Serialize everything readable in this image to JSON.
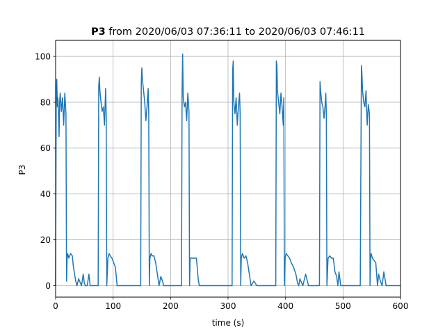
{
  "chart_data": {
    "type": "line",
    "title": {
      "bold": "P3",
      "rest": " from 2020/06/03 07:36:11 to 2020/06/03 07:46:11"
    },
    "xlabel": "time (s)",
    "ylabel": "P3",
    "xlim": [
      0,
      600
    ],
    "ylim": [
      -5,
      107
    ],
    "xticks": [
      0,
      100,
      200,
      300,
      400,
      500,
      600
    ],
    "yticks": [
      0,
      20,
      40,
      60,
      80,
      100
    ],
    "grid": true,
    "color": "#1f77b4",
    "series": [
      {
        "x": [
          0,
          1,
          2,
          3,
          4,
          5,
          6,
          7,
          8,
          10,
          12,
          14,
          16,
          18,
          19,
          20,
          21,
          23,
          26,
          29,
          31,
          33,
          35,
          37,
          40,
          45,
          48,
          50,
          52,
          55,
          58,
          60,
          65,
          70,
          74,
          75,
          76,
          77,
          79,
          81,
          83,
          85,
          87,
          88,
          89,
          91,
          93,
          95,
          98,
          101,
          104,
          107,
          110,
          115,
          120,
          125,
          130,
          135,
          140,
          145,
          148,
          149,
          150,
          151,
          153,
          155,
          157,
          159,
          161,
          162,
          163,
          164,
          166,
          168,
          171,
          174,
          177,
          180,
          183,
          186,
          188,
          190,
          195,
          200,
          205,
          210,
          215,
          219,
          220,
          221,
          222,
          224,
          226,
          228,
          230,
          232,
          233,
          234,
          236,
          240,
          245,
          248,
          250,
          255,
          260,
          270,
          280,
          290,
          300,
          305,
          307,
          308,
          309,
          310,
          312,
          314,
          316,
          318,
          320,
          321,
          322,
          323,
          325,
          328,
          331,
          334,
          337,
          340,
          345,
          350,
          355,
          360,
          365,
          370,
          375,
          380,
          383,
          384,
          385,
          386,
          388,
          390,
          392,
          394,
          396,
          397,
          398,
          399,
          401,
          404,
          407,
          410,
          414,
          418,
          421,
          423,
          425,
          430,
          435,
          440,
          445,
          450,
          455,
          458,
          459,
          460,
          461,
          463,
          465,
          467,
          469,
          470,
          471,
          472,
          474,
          477,
          480,
          483,
          486,
          489,
          491,
          493,
          496,
          500,
          505,
          510,
          515,
          520,
          525,
          530,
          532,
          533,
          534,
          536,
          538,
          540,
          542,
          544,
          546,
          547,
          548,
          549,
          551,
          554,
          557,
          560,
          562,
          565,
          568,
          571,
          575,
          580,
          585,
          590,
          595,
          600
        ],
        "y": [
          0,
          86,
          90,
          78,
          82,
          75,
          65,
          80,
          84,
          76,
          82,
          70,
          84,
          75,
          2,
          12,
          14,
          12,
          14,
          13,
          8,
          5,
          2,
          0,
          3,
          0,
          5,
          1,
          0,
          0,
          5,
          0,
          0,
          0,
          0,
          87,
          91,
          85,
          80,
          76,
          78,
          70,
          86,
          75,
          0,
          12,
          14,
          13,
          12,
          10,
          8,
          0,
          0,
          0,
          0,
          0,
          0,
          0,
          0,
          0,
          0,
          88,
          95,
          90,
          85,
          80,
          72,
          78,
          86,
          75,
          0,
          12,
          14,
          13,
          13,
          10,
          5,
          0,
          4,
          2,
          0,
          0,
          0,
          0,
          0,
          0,
          0,
          0,
          85,
          101,
          82,
          78,
          80,
          72,
          84,
          76,
          0,
          12,
          12,
          12,
          12,
          3,
          0,
          0,
          0,
          0,
          0,
          0,
          0,
          0,
          0,
          94,
          98,
          80,
          75,
          82,
          70,
          78,
          84,
          75,
          0,
          12,
          14,
          12,
          13,
          10,
          5,
          0,
          2,
          0,
          0,
          0,
          0,
          0,
          0,
          0,
          0,
          98,
          96,
          85,
          80,
          75,
          84,
          78,
          70,
          82,
          0,
          12,
          14,
          13,
          12,
          10,
          8,
          5,
          1,
          0,
          3,
          0,
          5,
          0,
          0,
          0,
          0,
          0,
          0,
          89,
          85,
          80,
          78,
          73,
          79,
          84,
          75,
          0,
          12,
          13,
          12,
          12,
          6,
          4,
          0,
          6,
          0,
          0,
          0,
          0,
          0,
          0,
          0,
          0,
          96,
          92,
          85,
          80,
          78,
          85,
          70,
          79,
          75,
          0,
          12,
          14,
          12,
          11,
          10,
          0,
          5,
          2,
          0,
          6,
          0,
          0,
          0,
          0,
          0,
          0
        ]
      }
    ]
  }
}
